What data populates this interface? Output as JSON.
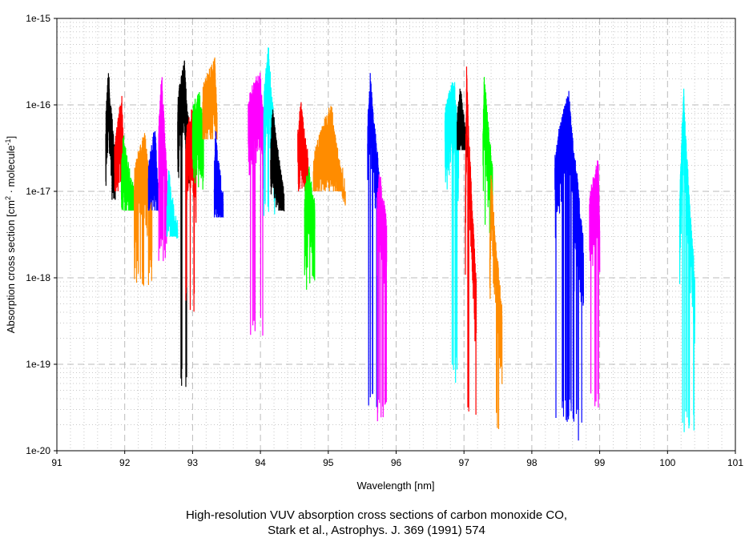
{
  "chart_data": {
    "type": "line",
    "xlabel": "Wavelength [nm]",
    "ylabel_parts": [
      "Absorption cross section [cm",
      "2",
      " · molecule",
      "-1",
      "]"
    ],
    "xlim": [
      91,
      101
    ],
    "ylim": [
      1e-20,
      1e-15
    ],
    "yscale": "log",
    "grid": true,
    "x_ticks": [
      "91",
      "92",
      "93",
      "94",
      "95",
      "96",
      "97",
      "98",
      "99",
      "100",
      "101"
    ],
    "y_ticks": [
      "1e-20",
      "1e-19",
      "1e-18",
      "1e-17",
      "1e-16",
      "1e-15"
    ],
    "title_lines": [
      "High-resolution VUV absorption cross sections of carbon monoxide CO,",
      "Stark et al., Astrophys. J. 369 (1991) 574"
    ],
    "colors": {
      "black": "#000000",
      "red": "#ff0000",
      "green": "#00ff00",
      "orange": "#ff8c00",
      "blue": "#0000ff",
      "magenta": "#ff00ff",
      "cyan": "#00ffff"
    },
    "segments": [
      {
        "color": "black",
        "x": [
          91.72,
          91.86
        ],
        "peak_x": 91.76,
        "peak": 3e-16,
        "end": 3e-17,
        "min": 8e-18
      },
      {
        "color": "red",
        "x": [
          91.85,
          92.0
        ],
        "peak_x": 91.96,
        "peak": 1.3e-16,
        "end": 2e-17,
        "min": 1e-17
      },
      {
        "color": "green",
        "x": [
          91.95,
          92.15
        ],
        "peak_x": 91.98,
        "peak": 5e-17,
        "end": 1e-17,
        "min": 6e-18
      },
      {
        "color": "orange",
        "x": [
          92.14,
          92.4
        ],
        "peak_x": 92.3,
        "peak": 5e-17,
        "end": 1e-17,
        "min": 8e-19
      },
      {
        "color": "blue",
        "x": [
          92.35,
          92.5
        ],
        "peak_x": 92.45,
        "peak": 6e-17,
        "end": 1e-17,
        "min": 6e-18
      },
      {
        "color": "magenta",
        "x": [
          92.5,
          92.62
        ],
        "peak_x": 92.55,
        "peak": 2.6e-16,
        "end": 2e-17,
        "min": 1.5e-18
      },
      {
        "color": "cyan",
        "x": [
          92.62,
          92.78
        ],
        "peak_x": 92.65,
        "peak": 2e-17,
        "end": 4e-18,
        "min": 3e-18
      },
      {
        "color": "black",
        "x": [
          92.78,
          92.95
        ],
        "peak_x": 92.88,
        "peak": 3.5e-16,
        "end": 6e-17,
        "min": 5e-20
      },
      {
        "color": "red",
        "x": [
          92.9,
          93.05
        ],
        "peak_x": 93.0,
        "peak": 1e-16,
        "end": 3e-17,
        "min": 4e-19
      },
      {
        "color": "green",
        "x": [
          93.0,
          93.16
        ],
        "peak_x": 93.1,
        "peak": 1.5e-16,
        "end": 7e-17,
        "min": 1e-17
      },
      {
        "color": "orange",
        "x": [
          93.15,
          93.36
        ],
        "peak_x": 93.33,
        "peak": 3.6e-16,
        "end": 1e-16,
        "min": 4e-17
      },
      {
        "color": "blue",
        "x": [
          93.32,
          93.45
        ],
        "peak_x": 93.34,
        "peak": 6e-17,
        "end": 1e-17,
        "min": 5e-18
      },
      {
        "color": "magenta",
        "x": [
          93.82,
          94.05
        ],
        "peak_x": 94.0,
        "peak": 2.6e-16,
        "end": 8e-17,
        "min": 2e-19
      },
      {
        "color": "cyan",
        "x": [
          94.05,
          94.22
        ],
        "peak_x": 94.12,
        "peak": 5.5e-16,
        "end": 5e-17,
        "min": 5e-18
      },
      {
        "color": "black",
        "x": [
          94.15,
          94.35
        ],
        "peak_x": 94.18,
        "peak": 1.2e-16,
        "end": 1e-17,
        "min": 6e-18
      },
      {
        "color": "red",
        "x": [
          94.55,
          94.7
        ],
        "peak_x": 94.6,
        "peak": 1.2e-16,
        "end": 3e-17,
        "min": 1e-17
      },
      {
        "color": "green",
        "x": [
          94.65,
          94.8
        ],
        "peak_x": 94.72,
        "peak": 2e-17,
        "end": 8e-18,
        "min": 7e-19
      },
      {
        "color": "orange",
        "x": [
          94.78,
          95.25
        ],
        "peak_x": 95.05,
        "peak": 1.1e-16,
        "end": 1e-17,
        "min": 1e-17
      },
      {
        "color": "blue",
        "x": [
          95.58,
          95.75
        ],
        "peak_x": 95.62,
        "peak": 2.5e-16,
        "end": 2e-17,
        "min": 3e-20
      },
      {
        "color": "magenta",
        "x": [
          95.72,
          95.86
        ],
        "peak_x": 95.76,
        "peak": 2e-17,
        "end": 5e-18,
        "min": 2e-20
      },
      {
        "color": "cyan",
        "x": [
          96.72,
          96.92
        ],
        "peak_x": 96.86,
        "peak": 2.2e-16,
        "end": 5e-17,
        "min": 6e-20
      },
      {
        "color": "black",
        "x": [
          96.9,
          97.05
        ],
        "peak_x": 96.95,
        "peak": 1.8e-16,
        "end": 4e-17,
        "min": 3e-17
      },
      {
        "color": "red",
        "x": [
          97.02,
          97.18
        ],
        "peak_x": 97.04,
        "peak": 3.2e-16,
        "end": 1e-18,
        "min": 1.7e-20
      },
      {
        "color": "green",
        "x": [
          97.28,
          97.42
        ],
        "peak_x": 97.3,
        "peak": 2.8e-16,
        "end": 2e-17,
        "min": 3e-18
      },
      {
        "color": "orange",
        "x": [
          97.38,
          97.56
        ],
        "peak_x": 97.4,
        "peak": 2e-17,
        "end": 5e-19,
        "min": 1.5e-20
      },
      {
        "color": "blue",
        "x": [
          98.34,
          98.7
        ],
        "peak_x": 98.55,
        "peak": 1.5e-16,
        "end": 1e-17,
        "min": 2e-20
      },
      {
        "color": "blue",
        "x": [
          98.62,
          98.76
        ],
        "peak_x": 98.65,
        "peak": 2e-17,
        "end": 3e-18,
        "min": 1.3e-20
      },
      {
        "color": "magenta",
        "x": [
          98.85,
          99.0
        ],
        "peak_x": 98.98,
        "peak": 2.5e-17,
        "end": 5e-18,
        "min": 3e-20
      },
      {
        "color": "cyan",
        "x": [
          100.18,
          100.4
        ],
        "peak_x": 100.24,
        "peak": 1.7e-16,
        "end": 1.2e-18,
        "min": 1.5e-20
      }
    ]
  }
}
